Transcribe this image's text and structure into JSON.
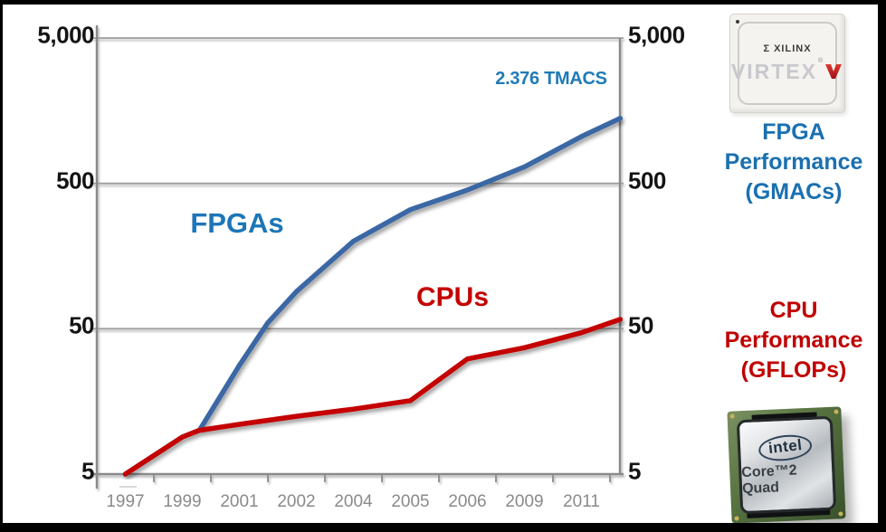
{
  "chart_data": {
    "type": "line",
    "title": "",
    "x_categories": [
      "1997",
      "1999",
      "2001",
      "2002",
      "2004",
      "2005",
      "2006",
      "2009",
      "2011"
    ],
    "y_axis": {
      "scale": "log",
      "range": [
        5,
        5000
      ],
      "ticks": [
        5,
        50,
        500,
        5000
      ],
      "tick_labels": [
        "5",
        "50",
        "500",
        "5,000"
      ],
      "dual_sided": true,
      "grid": "horizontal"
    },
    "series": [
      {
        "name": "FPGAs",
        "units": "GMACs",
        "color": "#3A67A5",
        "values_by_year": {
          "1997": 5,
          "1999": 9,
          "2001": 28,
          "2002": 90,
          "2004": 200,
          "2005": 330,
          "2006": 450,
          "2009": 650,
          "2011": 1050
        },
        "points": [
          [
            0,
            5
          ],
          [
            1,
            9
          ],
          [
            1.3,
            10
          ],
          [
            2,
            28
          ],
          [
            2.5,
            55
          ],
          [
            3,
            90
          ],
          [
            4,
            200
          ],
          [
            5,
            330
          ],
          [
            6,
            450
          ],
          [
            7,
            650
          ],
          [
            8,
            1050
          ],
          [
            8.68,
            1400
          ]
        ]
      },
      {
        "name": "CPUs",
        "units": "GFLOPs",
        "color": "#C40000",
        "values_by_year": {
          "1997": 5,
          "1999": 9,
          "2001": 11,
          "2002": 12.5,
          "2004": 14,
          "2005": 16,
          "2006": 31,
          "2009": 37,
          "2011": 47
        },
        "points": [
          [
            0,
            5
          ],
          [
            1,
            9
          ],
          [
            1.3,
            10
          ],
          [
            2,
            11
          ],
          [
            3,
            12.5
          ],
          [
            4,
            14
          ],
          [
            5,
            16
          ],
          [
            6,
            31
          ],
          [
            7,
            37
          ],
          [
            8,
            47
          ],
          [
            8.68,
            58
          ]
        ]
      }
    ],
    "annotation": {
      "text": "2.376 TMACS",
      "color": "#1F7AB8"
    }
  },
  "captions": {
    "fpga": {
      "line1": "FPGA",
      "line2": "Performance",
      "line3": "(GMACs)",
      "color": "#1A70B0"
    },
    "cpu": {
      "line1": "CPU",
      "line2": "Performance",
      "line3": "(GFLOPs)",
      "color": "#C00000"
    }
  },
  "chips": {
    "virtex": {
      "brand": "Σ XILINX",
      "product": "VIRTEX",
      "reg": "®"
    },
    "intel": {
      "logo": "intel",
      "product": "Core™2 Quad"
    }
  }
}
